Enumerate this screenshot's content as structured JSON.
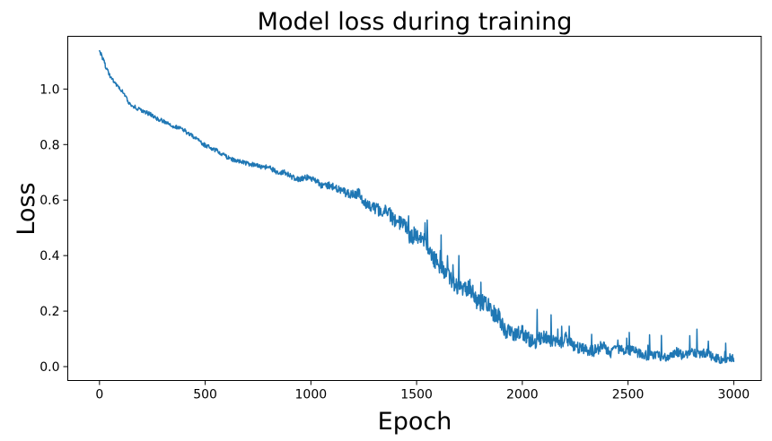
{
  "chart_data": {
    "type": "line",
    "title": "Model loss during training",
    "xlabel": "Epoch",
    "ylabel": "Loss",
    "xlim": [
      -150,
      3130
    ],
    "ylim": [
      -0.05,
      1.19
    ],
    "xticks": [
      0,
      500,
      1000,
      1500,
      2000,
      2500,
      3000
    ],
    "xtick_labels": [
      "0",
      "500",
      "1000",
      "1500",
      "2000",
      "2500",
      "3000"
    ],
    "yticks": [
      0.0,
      0.2,
      0.4,
      0.6,
      0.8,
      1.0
    ],
    "ytick_labels": [
      "0.0",
      "0.2",
      "0.4",
      "0.6",
      "0.8",
      "1.0"
    ],
    "grid": false,
    "legend": null,
    "colors": {
      "background": "#ffffff",
      "axes": "#000000",
      "text": "#000000",
      "line": "#1f77b4"
    },
    "series": [
      {
        "id": "loss",
        "color": "#1f77b4",
        "linewidth": 1.5,
        "x_range": [
          0,
          3000
        ],
        "sample_step": 2,
        "trend": [
          [
            0,
            1.14
          ],
          [
            15,
            1.115
          ],
          [
            30,
            1.085
          ],
          [
            50,
            1.055
          ],
          [
            75,
            1.025
          ],
          [
            100,
            0.995
          ],
          [
            125,
            0.97
          ],
          [
            150,
            0.95
          ],
          [
            200,
            0.92
          ],
          [
            250,
            0.9
          ],
          [
            300,
            0.885
          ],
          [
            350,
            0.868
          ],
          [
            400,
            0.85
          ],
          [
            450,
            0.822
          ],
          [
            500,
            0.795
          ],
          [
            550,
            0.775
          ],
          [
            600,
            0.758
          ],
          [
            650,
            0.745
          ],
          [
            700,
            0.732
          ],
          [
            750,
            0.72
          ],
          [
            800,
            0.71
          ],
          [
            850,
            0.7
          ],
          [
            900,
            0.69
          ],
          [
            950,
            0.68
          ],
          [
            1000,
            0.67
          ],
          [
            1050,
            0.66
          ],
          [
            1100,
            0.65
          ],
          [
            1150,
            0.64
          ],
          [
            1200,
            0.628
          ],
          [
            1250,
            0.6
          ],
          [
            1300,
            0.572
          ],
          [
            1350,
            0.545
          ],
          [
            1400,
            0.515
          ],
          [
            1450,
            0.488
          ],
          [
            1500,
            0.46
          ],
          [
            1550,
            0.428
          ],
          [
            1600,
            0.395
          ],
          [
            1650,
            0.352
          ],
          [
            1700,
            0.31
          ],
          [
            1750,
            0.272
          ],
          [
            1800,
            0.235
          ],
          [
            1850,
            0.2
          ],
          [
            1900,
            0.155
          ],
          [
            1950,
            0.14
          ],
          [
            2000,
            0.125
          ],
          [
            2050,
            0.112
          ],
          [
            2100,
            0.1
          ],
          [
            2150,
            0.092
          ],
          [
            2200,
            0.085
          ],
          [
            2250,
            0.078
          ],
          [
            2300,
            0.072
          ],
          [
            2350,
            0.066
          ],
          [
            2400,
            0.06
          ],
          [
            2500,
            0.052
          ],
          [
            2600,
            0.047
          ],
          [
            2700,
            0.044
          ],
          [
            2800,
            0.042
          ],
          [
            2900,
            0.039
          ],
          [
            3000,
            0.034
          ]
        ],
        "noise_envelope": [
          [
            0,
            0.01
          ],
          [
            300,
            0.009
          ],
          [
            700,
            0.01
          ],
          [
            1000,
            0.013
          ],
          [
            1150,
            0.018
          ],
          [
            1300,
            0.028
          ],
          [
            1450,
            0.038
          ],
          [
            1600,
            0.042
          ],
          [
            1800,
            0.042
          ],
          [
            2000,
            0.034
          ],
          [
            2200,
            0.03
          ],
          [
            2500,
            0.022
          ],
          [
            3000,
            0.02
          ]
        ],
        "spike_envelope": [
          [
            0,
            0.0
          ],
          [
            1250,
            0.0
          ],
          [
            1400,
            0.06
          ],
          [
            1600,
            0.12
          ],
          [
            1900,
            0.12
          ],
          [
            2100,
            0.13
          ],
          [
            2300,
            0.14
          ],
          [
            2500,
            0.1
          ],
          [
            3000,
            0.09
          ]
        ],
        "value_floor": 0.005,
        "start_value": 1.14,
        "end_value": 0.03
      }
    ]
  }
}
